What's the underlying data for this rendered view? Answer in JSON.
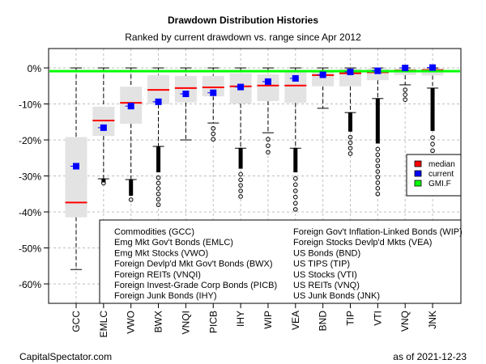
{
  "chart_data": {
    "type": "boxplot",
    "title": "Drawdown Distribution Histories",
    "subtitle": "Ranked by current drawdown vs. range since Apr 2012",
    "xlabel": "",
    "ylabel": "",
    "ylim": [
      -68,
      5
    ],
    "yticks": [
      0,
      -10,
      -20,
      -30,
      -40,
      -50,
      -60
    ],
    "ytick_labels": [
      "0%",
      "-10%",
      "-20%",
      "-30%",
      "-40%",
      "-50%",
      "-60%"
    ],
    "grid": true,
    "gmi_f": -0.9,
    "categories": [
      "GCC",
      "EMLC",
      "VWO",
      "BWX",
      "VNQI",
      "PICB",
      "IHY",
      "WIP",
      "VEA",
      "BND",
      "TIP",
      "VTI",
      "VNQ",
      "JNK"
    ],
    "boxes": [
      {
        "ticker": "GCC",
        "whisker_high": 0,
        "q3": -19.2,
        "median": -37.4,
        "q1": -41.5,
        "whisker_low": -56.0,
        "current": -27.3,
        "outliers_min": null,
        "dense_to": null
      },
      {
        "ticker": "EMLC",
        "whisker_high": 0,
        "q3": -10.8,
        "median": -14.6,
        "q1": -18.9,
        "whisker_low": -30.8,
        "current": -16.6,
        "outliers_min": -32.0,
        "dense_to": -31.8
      },
      {
        "ticker": "VWO",
        "whisker_high": 0,
        "q3": -5.2,
        "median": -9.7,
        "q1": -15.5,
        "whisker_low": -31.0,
        "current": -10.6,
        "outliers_min": -36.6,
        "dense_to": -35.5
      },
      {
        "ticker": "BWX",
        "whisker_high": 0,
        "q3": -2.0,
        "median": -6.1,
        "q1": -10.1,
        "whisker_low": -21.8,
        "current": -9.4,
        "outliers_min": -38.0,
        "dense_to": -29.0
      },
      {
        "ticker": "VNQI",
        "whisker_high": 0,
        "q3": -2.2,
        "median": -5.6,
        "q1": -9.6,
        "whisker_low": -20.0,
        "current": -7.2,
        "outliers_min": null,
        "dense_to": null
      },
      {
        "ticker": "PICB",
        "whisker_high": 0,
        "q3": -2.2,
        "median": -5.4,
        "q1": -7.9,
        "whisker_low": -15.3,
        "current": -6.9,
        "outliers_min": -19.8,
        "dense_to": null
      },
      {
        "ticker": "IHY",
        "whisker_high": 0,
        "q3": -1.5,
        "median": -5.1,
        "q1": -9.9,
        "whisker_low": -22.3,
        "current": -5.3,
        "outliers_min": -35.7,
        "dense_to": -28.0
      },
      {
        "ticker": "WIP",
        "whisker_high": 0,
        "q3": -1.8,
        "median": -4.9,
        "q1": -9.2,
        "whisker_low": -18.0,
        "current": -3.8,
        "outliers_min": -23.4,
        "dense_to": null
      },
      {
        "ticker": "VEA",
        "whisker_high": 0,
        "q3": -0.9,
        "median": -4.9,
        "q1": -9.7,
        "whisker_low": -22.3,
        "current": -2.9,
        "outliers_min": -39.3,
        "dense_to": -29.0
      },
      {
        "ticker": "BND",
        "whisker_high": 0,
        "q3": -0.7,
        "median": -2.0,
        "q1": -5.1,
        "whisker_low": -11.2,
        "current": -1.9,
        "outliers_min": null,
        "dense_to": null
      },
      {
        "ticker": "TIP",
        "whisker_high": 0,
        "q3": -0.2,
        "median": -1.5,
        "q1": -5.1,
        "whisker_low": -12.4,
        "current": -1.1,
        "outliers_min": -23.8,
        "dense_to": -17.7
      },
      {
        "ticker": "VTI",
        "whisker_high": 0,
        "q3": -0.2,
        "median": -1.2,
        "q1": -3.4,
        "whisker_low": -8.5,
        "current": -0.8,
        "outliers_min": -35.0,
        "dense_to": -21.0
      },
      {
        "ticker": "VNQ",
        "whisker_high": 0,
        "q3": -0.2,
        "median": -0.7,
        "q1": -2.0,
        "whisker_low": -4.7,
        "current": 0.0,
        "outliers_min": -8.8,
        "dense_to": null
      },
      {
        "ticker": "JNK",
        "whisker_high": 0,
        "q3": -0.2,
        "median": -0.6,
        "q1": -2.1,
        "whisker_low": -5.6,
        "current": 0.1,
        "outliers_min": -23.0,
        "dense_to": -17.5
      }
    ],
    "legend": {
      "position": "right",
      "entries": [
        {
          "label": "median",
          "color": "#ff0000"
        },
        {
          "label": "current",
          "color": "#0000ff"
        },
        {
          "label": "GMI.F",
          "color": "#00ff00"
        }
      ]
    },
    "key": {
      "left": [
        "Commodities (GCC)",
        "Emg Mkt Gov't Bonds (EMLC)",
        "Emg Mkt Stocks (VWO)",
        "Foreign Devlp'd Mkt Gov't Bonds (BWX)",
        "Foreign REITs (VNQI)",
        "Foreign Invest-Grade Corp Bonds (PICB)",
        "Foreign Junk Bonds (IHY)"
      ],
      "right": [
        "Foreign Gov't Inflation-Linked Bonds (WIP)",
        "Foreign Stocks Devlp'd Mkts (VEA)",
        "US Bonds (BND)",
        "US TIPS (TIP)",
        "US Stocks (VTI)",
        "US REITs (VNQ)",
        "US Junk Bonds (JNK)"
      ]
    },
    "footer_left": "CapitalSpectator.com",
    "footer_right": "as of  2021-12-23",
    "colors": {
      "median": "#ff0000",
      "current": "#0000ff",
      "gmi": "#00ff00",
      "box_fill": "#e3e3e3",
      "grid": "#bebebe"
    }
  }
}
